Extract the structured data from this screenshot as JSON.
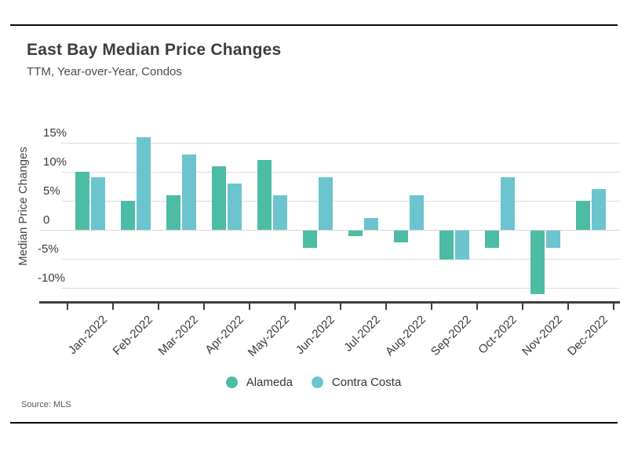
{
  "page": {
    "source_note": "Source: MLS"
  },
  "chart_data": {
    "type": "bar",
    "title": "East Bay Median Price Changes",
    "subtitle": "TTM, Year-over-Year, Condos",
    "ylabel": "Median Price Changes",
    "xlabel": "",
    "categories": [
      "Jan-2022",
      "Feb-2022",
      "Mar-2022",
      "Apr-2022",
      "May-2022",
      "Jun-2022",
      "Jul-2022",
      "Aug-2022",
      "Sep-2022",
      "Oct-2022",
      "Nov-2022",
      "Dec-2022"
    ],
    "series": [
      {
        "name": "Alameda",
        "color": "#4dbca4",
        "values": [
          10,
          5,
          6,
          11,
          12,
          -3,
          -1,
          -2,
          -5,
          -3,
          -11,
          5
        ]
      },
      {
        "name": "Contra Costa",
        "color": "#6cc4ce",
        "values": [
          9,
          16,
          13,
          8,
          6,
          9,
          2,
          6,
          -5,
          9,
          -3,
          7
        ]
      }
    ],
    "yticks": [
      {
        "value": 15,
        "label": "15%"
      },
      {
        "value": 10,
        "label": "10%"
      },
      {
        "value": 5,
        "label": "5%"
      },
      {
        "value": 0,
        "label": "0"
      },
      {
        "value": -5,
        "label": "-5%"
      },
      {
        "value": -10,
        "label": "-10%"
      }
    ],
    "ylim": [
      -12.3,
      16.5
    ],
    "grid": "horizontal",
    "legend_position": "bottom",
    "source": "Source: MLS"
  }
}
